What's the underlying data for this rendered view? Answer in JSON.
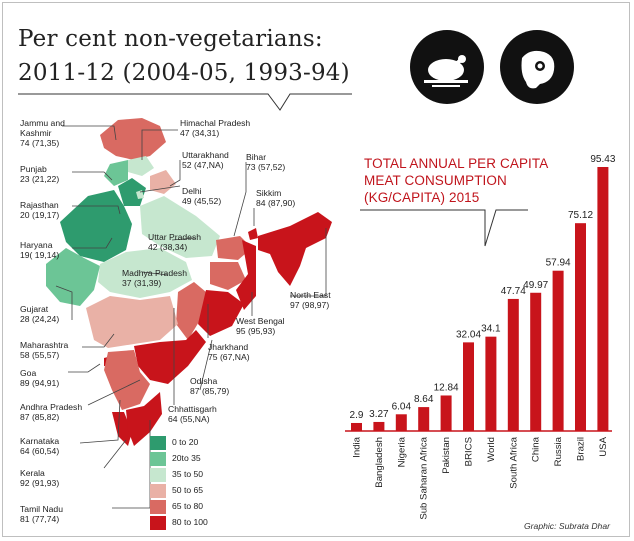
{
  "title": {
    "line1": "Per cent non-vegetarians:",
    "line2": "2011-12 (2004-05, 1993-94)"
  },
  "icons": [
    "chicken-icon",
    "meat-icon"
  ],
  "states": [
    {
      "id": "jk",
      "name1": "Jammu and",
      "name2": "Kashmir",
      "value": "74 (71,35)"
    },
    {
      "id": "hp",
      "name1": "Himachal Pradesh",
      "value": "47 (34,31)"
    },
    {
      "id": "pb",
      "name1": "Punjab",
      "value": "23 (21,22)"
    },
    {
      "id": "uk",
      "name1": "Uttarakhand",
      "value": "52 (47,NA)"
    },
    {
      "id": "br",
      "name1": "Bihar",
      "value": "73 (57,52)"
    },
    {
      "id": "rj",
      "name1": "Rajasthan",
      "value": "20 (19,17)"
    },
    {
      "id": "dl",
      "name1": "Delhi",
      "value": "49 (45,52)"
    },
    {
      "id": "sk",
      "name1": "Sikkim",
      "value": "84 (87,90)"
    },
    {
      "id": "hr",
      "name1": "Haryana",
      "value": "19( 19,14)"
    },
    {
      "id": "up",
      "name1": "Uttar Pradesh",
      "value": "42 (38,34)"
    },
    {
      "id": "mp",
      "name1": "Madhya Pradesh",
      "value": "37 (31,39)"
    },
    {
      "id": "gj",
      "name1": "Gujarat",
      "value": "28 (24,24)"
    },
    {
      "id": "ne",
      "name1": "North East",
      "value": "97 (98,97)"
    },
    {
      "id": "wb",
      "name1": "West Bengal",
      "value": "95 (95,93)"
    },
    {
      "id": "mh",
      "name1": "Maharashtra",
      "value": "58 (55,57)"
    },
    {
      "id": "jh",
      "name1": "Jharkhand",
      "value": "75 (67,NA)"
    },
    {
      "id": "ga",
      "name1": "Goa",
      "value": "89 (94,91)"
    },
    {
      "id": "od",
      "name1": "Odisha",
      "value": "87 (85,79)"
    },
    {
      "id": "ap",
      "name1": "Andhra Pradesh",
      "value": "87 (85,82)"
    },
    {
      "id": "cg",
      "name1": "Chhattisgarh",
      "value": "64 (55,NA)"
    },
    {
      "id": "ka",
      "name1": "Karnataka",
      "value": "64 (60,54)"
    },
    {
      "id": "kl",
      "name1": "Kerala",
      "value": "92 (91,93)"
    },
    {
      "id": "tn",
      "name1": "Tamil Nadu",
      "value": "81 (77,74)"
    }
  ],
  "legend": [
    {
      "label": "0 to 20",
      "color": "#2e9b6e"
    },
    {
      "label": "20to 35",
      "color": "#6cc596"
    },
    {
      "label": "35 to 50",
      "color": "#c6e7cf"
    },
    {
      "label": "50 to 65",
      "color": "#e9b1a6"
    },
    {
      "label": "65 to 80",
      "color": "#d96a62"
    },
    {
      "label": "80 to 100",
      "color": "#c8141b"
    }
  ],
  "chart_data": {
    "type": "bar",
    "title": "TOTAL ANNUAL PER CAPITA MEAT CONSUMPTION (KG/CAPITA) 2015",
    "title_lines": [
      "TOTAL ANNUAL PER CAPITA",
      "MEAT CONSUMPTION",
      "(KG/CAPITA) 2015"
    ],
    "categories": [
      "India",
      "Bangladesh",
      "Nigeria",
      "Sub Saharan Africa",
      "Pakistan",
      "BRICS",
      "World",
      "South Africa",
      "China",
      "Russia",
      "Brazil",
      "USA"
    ],
    "values": [
      2.9,
      3.27,
      6.04,
      8.64,
      12.84,
      32.04,
      34.1,
      47.74,
      49.97,
      57.94,
      75.12,
      95.43
    ],
    "value_labels": [
      "2.9",
      "3.27",
      "6.04",
      "8.64",
      "12.84",
      "32.04",
      "34.1",
      "47.74",
      "49.97",
      "57.94",
      "75.12",
      "95.43"
    ],
    "ylim": [
      0,
      100
    ],
    "xlabel": "",
    "ylabel": "",
    "bar_color": "#c8141b"
  },
  "credit": "Graphic: Subrata Dhar"
}
